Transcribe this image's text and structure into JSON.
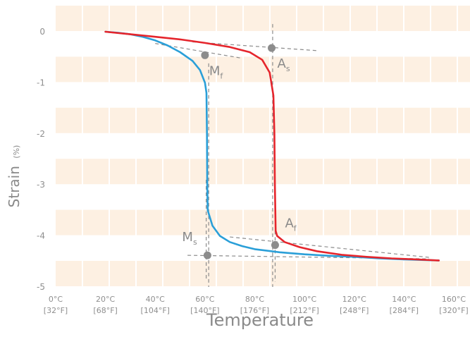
{
  "chart_data": {
    "type": "line",
    "xlabel": "Temperature",
    "ylabel": "Strain",
    "ylabel_unit": "(%)",
    "xlim": [
      0,
      160
    ],
    "ylim": [
      -5,
      0
    ],
    "grid": "band",
    "x_ticks": [
      {
        "value": 0,
        "c": "0°C",
        "f": "[32°F]"
      },
      {
        "value": 20,
        "c": "20°C",
        "f": "[68°F]"
      },
      {
        "value": 40,
        "c": "40°C",
        "f": "[104°F]"
      },
      {
        "value": 60,
        "c": "60°C",
        "f": "[140°F]"
      },
      {
        "value": 80,
        "c": "80°C",
        "f": "[176°F]"
      },
      {
        "value": 100,
        "c": "100°C",
        "f": "[212°F]"
      },
      {
        "value": 120,
        "c": "120°C",
        "f": "[248°F]"
      },
      {
        "value": 140,
        "c": "140°C",
        "f": "[284°F]"
      },
      {
        "value": 160,
        "c": "160°C",
        "f": "[320°F]"
      }
    ],
    "y_ticks": [
      0,
      -1,
      -2,
      -3,
      -4,
      -5
    ],
    "series": [
      {
        "key": "cooling",
        "color": "#2a9fd8",
        "points": [
          [
            20,
            0
          ],
          [
            25,
            -0.02
          ],
          [
            30,
            -0.05
          ],
          [
            35,
            -0.1
          ],
          [
            40,
            -0.17
          ],
          [
            45,
            -0.27
          ],
          [
            50,
            -0.4
          ],
          [
            55,
            -0.57
          ],
          [
            58,
            -0.75
          ],
          [
            60,
            -1.0
          ],
          [
            60.6,
            -1.2
          ],
          [
            60.8,
            -2.0
          ],
          [
            60.9,
            -3.0
          ],
          [
            61.1,
            -3.5
          ],
          [
            63,
            -3.8
          ],
          [
            66,
            -4.0
          ],
          [
            70,
            -4.12
          ],
          [
            75,
            -4.2
          ],
          [
            80,
            -4.26
          ],
          [
            90,
            -4.32
          ],
          [
            100,
            -4.36
          ],
          [
            110,
            -4.39
          ],
          [
            120,
            -4.41
          ],
          [
            130,
            -4.44
          ],
          [
            140,
            -4.46
          ],
          [
            154,
            -4.48
          ]
        ]
      },
      {
        "key": "heating",
        "color": "#e5252c",
        "points": [
          [
            20,
            0
          ],
          [
            30,
            -0.05
          ],
          [
            40,
            -0.1
          ],
          [
            50,
            -0.15
          ],
          [
            60,
            -0.22
          ],
          [
            70,
            -0.3
          ],
          [
            78,
            -0.4
          ],
          [
            83,
            -0.55
          ],
          [
            86,
            -0.8
          ],
          [
            87.5,
            -1.25
          ],
          [
            87.9,
            -2.0
          ],
          [
            88.1,
            -3.0
          ],
          [
            88.4,
            -3.9
          ],
          [
            89,
            -4.0
          ],
          [
            92,
            -4.12
          ],
          [
            98,
            -4.22
          ],
          [
            105,
            -4.3
          ],
          [
            115,
            -4.37
          ],
          [
            125,
            -4.41
          ],
          [
            135,
            -4.44
          ],
          [
            145,
            -4.46
          ],
          [
            154,
            -4.48
          ]
        ]
      }
    ],
    "tangents": [
      [
        [
          40,
          -0.23
        ],
        [
          75,
          -0.52
        ]
      ],
      [
        [
          55,
          -0.2
        ],
        [
          105,
          -0.37
        ]
      ],
      [
        [
          53,
          -4.38
        ],
        [
          150,
          -4.45
        ]
      ],
      [
        [
          70,
          -4.02
        ],
        [
          150,
          -4.42
        ]
      ],
      [
        [
          61.5,
          -0.62
        ],
        [
          61.5,
          -5.0
        ]
      ],
      [
        [
          87.2,
          0.15
        ],
        [
          87.2,
          -5.0
        ]
      ],
      [
        [
          60.5,
          -2.9
        ],
        [
          60.5,
          -4.85
        ]
      ],
      [
        [
          88.2,
          -3.9
        ],
        [
          88.2,
          -4.9
        ]
      ]
    ],
    "points": [
      {
        "name": "Ms",
        "label": "M",
        "sub": "s",
        "x": 61,
        "y": -4.38,
        "dx": -36,
        "dy": -20
      },
      {
        "name": "Mf",
        "label": "M",
        "sub": "f",
        "x": 60,
        "y": -0.46,
        "dx": 6,
        "dy": 28
      },
      {
        "name": "As",
        "label": "A",
        "sub": "s",
        "x": 86.8,
        "y": -0.32,
        "dx": 8,
        "dy": 28
      },
      {
        "name": "Af",
        "label": "A",
        "sub": "f",
        "x": 88.2,
        "y": -4.18,
        "dx": 14,
        "dy": -25
      }
    ]
  }
}
